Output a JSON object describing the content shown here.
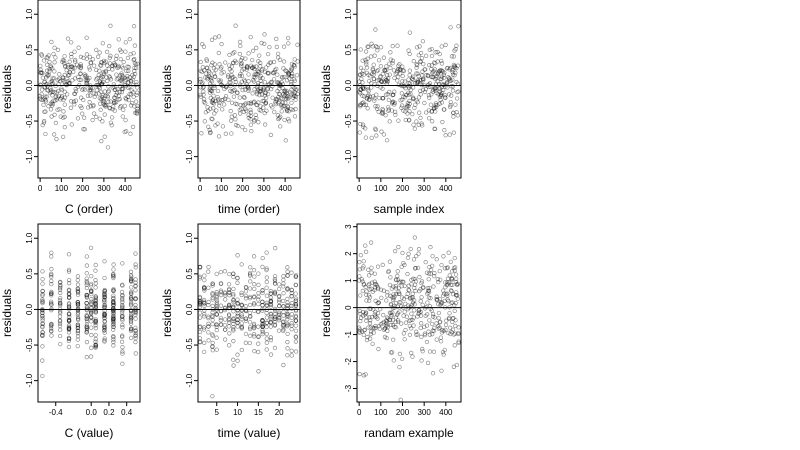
{
  "chart_data": [
    {
      "type": "scatter",
      "xlabel": "C (order)",
      "ylabel": "residuals",
      "xlim": [
        -10,
        470
      ],
      "ylim": [
        -1.3,
        1.2
      ],
      "xticks": [
        0,
        100,
        200,
        300,
        400
      ],
      "yticks": [
        1.0,
        0.5,
        0.0,
        -0.5,
        -1.0
      ],
      "ytick_labels": [
        "1.0",
        "0.5",
        "0.0",
        "-0.5",
        "-1.0"
      ],
      "reference_line_y": 0,
      "n_points": 450,
      "y_center": 0.0,
      "y_spread": 0.3,
      "x": [],
      "y": []
    },
    {
      "type": "scatter",
      "xlabel": "time (order)",
      "ylabel": "residuals",
      "xlim": [
        -10,
        470
      ],
      "ylim": [
        -1.3,
        1.2
      ],
      "xticks": [
        0,
        100,
        200,
        300,
        400
      ],
      "yticks": [
        1.0,
        0.5,
        0.0,
        -0.5,
        -1.0
      ],
      "ytick_labels": [
        "1.0",
        "0.5",
        "0.0",
        "-0.5",
        "-1.0"
      ],
      "reference_line_y": 0,
      "n_points": 450,
      "y_center": 0.0,
      "y_spread": 0.3,
      "x": [],
      "y": []
    },
    {
      "type": "scatter",
      "xlabel": "sample index",
      "ylabel": "residuals",
      "xlim": [
        -10,
        470
      ],
      "ylim": [
        -1.3,
        1.2
      ],
      "xticks": [
        0,
        100,
        200,
        300,
        400
      ],
      "yticks": [
        1.0,
        0.5,
        0.0,
        -0.5,
        -1.0
      ],
      "ytick_labels": [
        "1.0",
        "0.5",
        "0.0",
        "-0.5",
        "-1.0"
      ],
      "reference_line_y": 0,
      "n_points": 450,
      "y_center": 0.0,
      "y_spread": 0.3,
      "x": [],
      "y": []
    },
    {
      "type": "scatter",
      "xlabel": "C (value)",
      "ylabel": "residuals",
      "xlim": [
        -0.6,
        0.55
      ],
      "ylim": [
        -1.3,
        1.2
      ],
      "xticks": [
        -0.4,
        0.0,
        0.2,
        0.4
      ],
      "xtick_labels": [
        "-0.4",
        "0.0",
        "0.2",
        "0.4"
      ],
      "yticks": [
        1.0,
        0.5,
        0.0,
        -0.5,
        -1.0
      ],
      "ytick_labels": [
        "1.0",
        "0.5",
        "0.0",
        "-0.5",
        "-1.0"
      ],
      "reference_line_y": 0,
      "n_points": 450,
      "y_center": 0.0,
      "y_spread": 0.3,
      "x_levels": [
        -0.55,
        -0.45,
        -0.35,
        -0.25,
        -0.15,
        -0.05,
        0.0,
        0.05,
        0.15,
        0.25,
        0.35,
        0.45,
        0.5
      ],
      "x": [],
      "y": []
    },
    {
      "type": "scatter",
      "xlabel": "time (value)",
      "ylabel": "residuals",
      "xlim": [
        0.5,
        25
      ],
      "ylim": [
        -1.3,
        1.2
      ],
      "xticks": [
        5,
        10,
        15,
        20
      ],
      "yticks": [
        1.0,
        0.5,
        0.0,
        -0.5,
        -1.0
      ],
      "ytick_labels": [
        "1.0",
        "0.5",
        "0.0",
        "-0.5",
        "-1.0"
      ],
      "reference_line_y": 0,
      "n_points": 450,
      "y_center": 0.0,
      "y_spread": 0.3,
      "x_levels": [
        1,
        2,
        3,
        4,
        5,
        6,
        7,
        8,
        9,
        10,
        11,
        12,
        13,
        14,
        15,
        16,
        17,
        18,
        19,
        20,
        21,
        22,
        23,
        24
      ],
      "x": [],
      "y": []
    },
    {
      "type": "scatter",
      "xlabel": "randam example",
      "ylabel": "residuals",
      "xlim": [
        -10,
        470
      ],
      "ylim": [
        -3.5,
        3.1
      ],
      "xticks": [
        0,
        100,
        200,
        300,
        400
      ],
      "yticks": [
        3,
        2,
        1,
        0,
        -1,
        -2,
        -3
      ],
      "ytick_labels": [
        "3",
        "2",
        "1",
        "0",
        "-1",
        "-2",
        "-3"
      ],
      "reference_line_y": 0,
      "n_points": 450,
      "y_center": 0.0,
      "y_spread": 1.0,
      "x": [],
      "y": []
    }
  ]
}
